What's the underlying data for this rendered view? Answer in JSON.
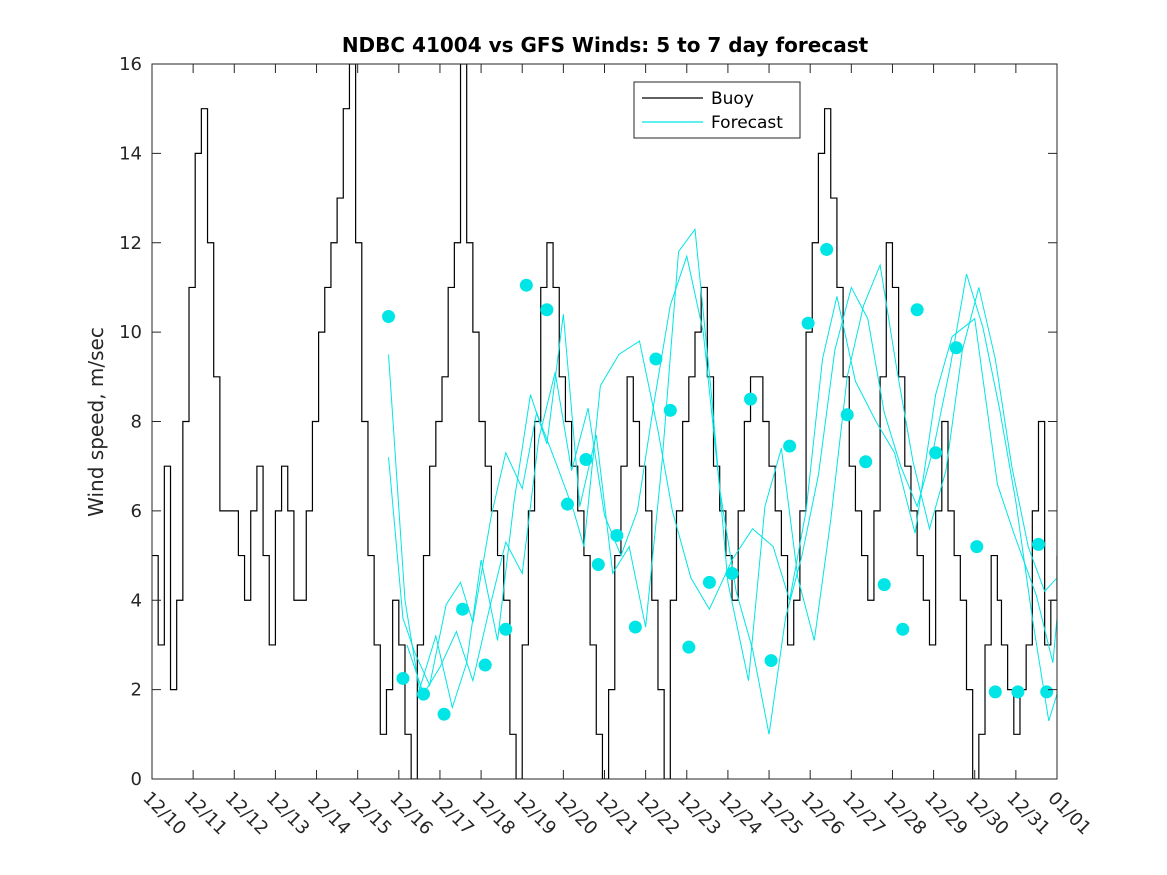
{
  "chart_data": {
    "type": "line",
    "title": "NDBC 41004 vs GFS Winds: 5 to 7 day forecast",
    "xlabel": "",
    "ylabel": "Wind speed, m/sec",
    "xlim": [
      0,
      22
    ],
    "ylim": [
      0,
      16
    ],
    "x_tick_labels": [
      "12/10",
      "12/11",
      "12/12",
      "12/13",
      "12/14",
      "12/15",
      "12/16",
      "12/17",
      "12/18",
      "12/19",
      "12/20",
      "12/21",
      "12/22",
      "12/23",
      "12/24",
      "12/25",
      "12/26",
      "12/27",
      "12/28",
      "12/29",
      "12/30",
      "12/31",
      "01/01"
    ],
    "y_ticks": [
      0,
      2,
      4,
      6,
      8,
      10,
      12,
      14,
      16
    ],
    "grid": false,
    "legend": {
      "placement": "top-right",
      "entries": [
        "Buoy",
        "Forecast"
      ]
    },
    "colors": {
      "buoy": "#000000",
      "forecast": "#00e5e5",
      "axis": "#262626"
    },
    "series": [
      {
        "name": "Buoy",
        "x": [
          0,
          0.15,
          0.3,
          0.45,
          0.6,
          0.75,
          0.9,
          1.05,
          1.2,
          1.35,
          1.5,
          1.65,
          1.8,
          1.95,
          2.1,
          2.25,
          2.4,
          2.55,
          2.7,
          2.85,
          3.0,
          3.15,
          3.3,
          3.45,
          3.6,
          3.75,
          3.9,
          4.05,
          4.2,
          4.35,
          4.5,
          4.65,
          4.8,
          4.95,
          5.1,
          5.25,
          5.4,
          5.55,
          5.7,
          5.85,
          6.0,
          6.15,
          6.3,
          6.45,
          6.6,
          6.75,
          6.9,
          7.05,
          7.2,
          7.35,
          7.5,
          7.65,
          7.8,
          7.95,
          8.1,
          8.25,
          8.4,
          8.55,
          8.7,
          8.85,
          9.0,
          9.15,
          9.3,
          9.45,
          9.6,
          9.75,
          9.9,
          10.05,
          10.2,
          10.35,
          10.5,
          10.65,
          10.8,
          10.95,
          11.1,
          11.25,
          11.4,
          11.55,
          11.7,
          11.85,
          12.0,
          12.15,
          12.3,
          12.45,
          12.6,
          12.75,
          12.9,
          13.05,
          13.2,
          13.35,
          13.5,
          13.65,
          13.8,
          13.95,
          14.1,
          14.25,
          14.4,
          14.55,
          14.7,
          14.85,
          15.0,
          15.15,
          15.3,
          15.45,
          15.6,
          15.75,
          15.9,
          16.05,
          16.2,
          16.35,
          16.5,
          16.65,
          16.8,
          16.95,
          17.1,
          17.25,
          17.4,
          17.55,
          17.7,
          17.85,
          18.0,
          18.15,
          18.3,
          18.45,
          18.6,
          18.75,
          18.9,
          19.05,
          19.2,
          19.35,
          19.5,
          19.65,
          19.8,
          19.95,
          20.1,
          20.25,
          20.4,
          20.55,
          20.65,
          20.8,
          20.95,
          21.1,
          21.25,
          21.4,
          21.55,
          21.7,
          21.85,
          22.0
        ],
        "values": [
          5,
          3,
          7,
          2,
          4,
          8,
          11,
          14,
          15,
          12,
          9,
          6,
          6,
          6,
          5,
          4,
          6,
          7,
          5,
          3,
          6,
          7,
          6,
          4,
          4,
          6,
          8,
          10,
          11,
          12,
          13,
          15,
          16,
          12,
          8,
          5,
          3,
          1,
          2,
          4,
          3,
          1,
          0,
          3,
          5,
          7,
          8,
          9,
          11,
          12,
          16,
          12,
          10,
          8,
          7,
          6,
          5,
          4,
          1,
          0,
          3,
          6,
          8,
          11,
          12,
          11,
          9,
          8,
          7,
          6,
          5,
          3,
          1,
          0,
          2,
          5,
          7,
          9,
          8,
          7,
          6,
          4,
          2,
          0,
          4,
          6,
          8,
          9,
          10,
          11,
          9,
          7,
          6,
          5,
          4,
          6,
          8,
          9,
          9,
          8,
          7,
          6,
          5,
          3,
          4,
          6,
          10,
          12,
          14,
          15,
          13,
          11,
          9,
          7,
          6,
          5,
          4,
          6,
          9,
          12,
          11,
          9,
          7,
          6,
          5,
          4,
          3,
          6,
          8,
          6,
          5,
          4,
          2,
          0,
          1,
          3,
          5,
          4,
          3,
          2,
          1,
          2,
          3,
          6,
          8,
          3,
          4,
          5
        ]
      },
      {
        "name": "Forecast",
        "x": [
          5.75,
          6.1,
          6.4,
          6.75,
          7.15,
          7.5,
          7.8,
          8.25,
          8.6,
          9.0,
          9.35,
          9.85,
          10.25,
          10.5,
          10.9,
          11.35,
          11.85,
          12.3,
          12.65,
          13.1,
          13.55,
          14.1,
          14.6,
          15.1,
          15.5,
          15.9,
          16.3,
          16.65,
          17.1,
          17.6,
          18.05,
          18.55,
          19.05,
          19.45,
          20.0,
          20.55,
          20.95,
          21.5,
          21.9,
          22.0
        ],
        "values": [
          7.2,
          3.6,
          2.8,
          2.1,
          3.9,
          4.4,
          3.5,
          5.9,
          7.3,
          6.5,
          8.2,
          7.0,
          6.0,
          5.2,
          8.8,
          9.5,
          9.8,
          7.8,
          6.0,
          4.5,
          3.8,
          4.9,
          5.6,
          5.2,
          4.0,
          6.0,
          9.4,
          10.8,
          8.9,
          8.0,
          7.3,
          5.5,
          8.6,
          9.9,
          10.3,
          6.6,
          5.5,
          4.1,
          2.6,
          3.6
        ]
      },
      {
        "name": "",
        "x": [
          5.75,
          6.15,
          6.5,
          6.9,
          7.3,
          7.65,
          8.0,
          8.4,
          8.8,
          9.2,
          9.6,
          10.0,
          10.4,
          10.8,
          11.2,
          11.6,
          12.0,
          12.4,
          12.8,
          13.2,
          13.6,
          14.0,
          14.5,
          14.9,
          15.3,
          15.7,
          16.1,
          16.5,
          16.9,
          17.3,
          17.7,
          18.1,
          18.5,
          18.9,
          19.3,
          19.7,
          20.1,
          20.5,
          20.9,
          21.3,
          21.7,
          22.0
        ],
        "values": [
          9.5,
          4.0,
          2.0,
          3.2,
          1.6,
          2.6,
          4.9,
          3.1,
          6.2,
          8.6,
          7.5,
          10.4,
          6.1,
          7.7,
          4.6,
          5.2,
          3.4,
          7.1,
          11.8,
          12.3,
          8.6,
          4.4,
          2.2,
          6.1,
          7.4,
          4.5,
          3.1,
          5.8,
          9.0,
          10.6,
          11.5,
          9.2,
          7.1,
          5.6,
          6.9,
          9.6,
          11.0,
          9.4,
          7.0,
          5.2,
          4.2,
          4.5
        ]
      },
      {
        "name": "",
        "x": [
          6.2,
          6.6,
          7.0,
          7.4,
          7.8,
          8.2,
          8.6,
          9.0,
          9.4,
          9.8,
          10.2,
          10.6,
          11.0,
          11.4,
          11.8,
          12.2,
          12.6,
          13.0,
          13.4,
          13.8,
          14.2,
          14.6,
          15.0,
          15.4,
          15.8,
          16.2,
          16.6,
          17.0,
          17.4,
          17.8,
          18.2,
          18.6,
          19.0,
          19.4,
          19.8,
          20.2,
          20.6,
          21.0,
          21.4,
          21.8,
          22.0
        ],
        "values": [
          3.0,
          1.9,
          2.5,
          3.3,
          2.2,
          3.8,
          5.3,
          4.6,
          7.6,
          9.1,
          6.9,
          8.3,
          5.9,
          5.0,
          6.0,
          8.4,
          10.6,
          11.7,
          10.0,
          6.5,
          4.2,
          2.9,
          1.0,
          3.6,
          5.0,
          6.8,
          9.6,
          11.0,
          10.3,
          8.2,
          7.0,
          6.1,
          7.4,
          9.2,
          11.3,
          10.1,
          8.3,
          6.2,
          3.6,
          1.3,
          1.9
        ]
      }
    ],
    "markers": {
      "name": "",
      "x": [
        5.75,
        6.1,
        6.6,
        7.1,
        7.55,
        8.1,
        8.6,
        9.1,
        9.6,
        10.1,
        10.55,
        10.85,
        11.3,
        11.75,
        12.25,
        12.6,
        13.05,
        13.55,
        14.1,
        14.55,
        15.05,
        15.5,
        15.95,
        16.4,
        16.9,
        17.35,
        17.8,
        18.25,
        18.6,
        19.05,
        19.55,
        20.05,
        20.5,
        21.05,
        21.55,
        21.75
      ],
      "values": [
        10.35,
        2.25,
        1.9,
        1.45,
        3.8,
        2.55,
        3.35,
        11.05,
        10.5,
        6.15,
        7.15,
        4.8,
        5.45,
        3.4,
        9.4,
        8.25,
        2.95,
        4.4,
        4.6,
        8.5,
        2.65,
        7.45,
        10.2,
        11.85,
        8.15,
        7.1,
        4.35,
        3.35,
        10.5,
        7.3,
        9.65,
        5.2,
        1.95,
        1.95,
        5.25,
        1.95
      ]
    }
  }
}
